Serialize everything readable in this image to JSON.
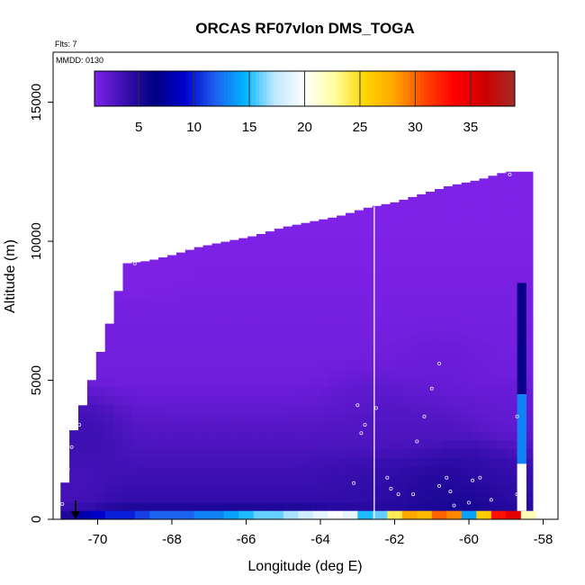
{
  "chart_data": {
    "type": "heatmap",
    "title": "ORCAS RF07vlon DMS_TOGA",
    "subtitle": "Flts: 7",
    "date_label": "MMDD: 0130",
    "xlabel": "Longitude (deg E)",
    "ylabel": "Altitude (m)",
    "xlim": [
      -71.2,
      -57.6
    ],
    "ylim": [
      0,
      16800
    ],
    "x_ticks": [
      -70,
      -68,
      -66,
      -64,
      -62,
      -60,
      -58
    ],
    "y_ticks": [
      0,
      5000,
      10000,
      15000
    ],
    "colorbar": {
      "range": [
        1,
        39
      ],
      "ticks": [
        5,
        10,
        15,
        20,
        25,
        30,
        35
      ],
      "colors": [
        "#7f22e8",
        "#3a0fb0",
        "#000080",
        "#0000cd",
        "#1e5ef0",
        "#00b4ff",
        "#bfe8ff",
        "#ffffff",
        "#ffffa0",
        "#ffd700",
        "#ffa500",
        "#ff4500",
        "#ff0000",
        "#cd0000",
        "#a52a2a"
      ]
    },
    "flight_line_longitude": -62.55,
    "ceiling": [
      {
        "lon": -71.0,
        "alt": 300
      },
      {
        "lon": -70.8,
        "alt": 2000
      },
      {
        "lon": -70.6,
        "alt": 3500
      },
      {
        "lon": -70.3,
        "alt": 4400
      },
      {
        "lon": -70.0,
        "alt": 5700
      },
      {
        "lon": -69.75,
        "alt": 6700
      },
      {
        "lon": -69.5,
        "alt": 7900
      },
      {
        "lon": -69.25,
        "alt": 9200
      },
      {
        "lon": -68.6,
        "alt": 9300
      },
      {
        "lon": -68.0,
        "alt": 9500
      },
      {
        "lon": -67.25,
        "alt": 9800
      },
      {
        "lon": -66.5,
        "alt": 10000
      },
      {
        "lon": -65.75,
        "alt": 10200
      },
      {
        "lon": -65.0,
        "alt": 10500
      },
      {
        "lon": -64.25,
        "alt": 10700
      },
      {
        "lon": -63.5,
        "alt": 10900
      },
      {
        "lon": -62.75,
        "alt": 11200
      },
      {
        "lon": -62.0,
        "alt": 11400
      },
      {
        "lon": -61.25,
        "alt": 11700
      },
      {
        "lon": -60.5,
        "alt": 12000
      },
      {
        "lon": -59.75,
        "alt": 12200
      },
      {
        "lon": -59.0,
        "alt": 12500
      },
      {
        "lon": -58.7,
        "alt": 12500
      }
    ],
    "samples": [
      {
        "lon": -70.95,
        "alt": 550,
        "value": 3
      },
      {
        "lon": -70.8,
        "alt": 1800,
        "value": 3
      },
      {
        "lon": -70.7,
        "alt": 2600,
        "value": 4
      },
      {
        "lon": -70.5,
        "alt": 3400,
        "value": 4
      },
      {
        "lon": -69.0,
        "alt": 9200,
        "value": 1
      },
      {
        "lon": -63.0,
        "alt": 4100,
        "value": 2
      },
      {
        "lon": -62.8,
        "alt": 3400,
        "value": 3
      },
      {
        "lon": -62.9,
        "alt": 3100,
        "value": 3
      },
      {
        "lon": -62.5,
        "alt": 4000,
        "value": 3
      },
      {
        "lon": -63.1,
        "alt": 1300,
        "value": 4
      },
      {
        "lon": -62.2,
        "alt": 1500,
        "value": 4
      },
      {
        "lon": -62.1,
        "alt": 1100,
        "value": 4
      },
      {
        "lon": -61.9,
        "alt": 900,
        "value": 5
      },
      {
        "lon": -61.5,
        "alt": 900,
        "value": 5
      },
      {
        "lon": -61.4,
        "alt": 2800,
        "value": 3
      },
      {
        "lon": -61.2,
        "alt": 3700,
        "value": 3
      },
      {
        "lon": -61.0,
        "alt": 4700,
        "value": 2
      },
      {
        "lon": -60.8,
        "alt": 5600,
        "value": 2
      },
      {
        "lon": -60.8,
        "alt": 1200,
        "value": 5
      },
      {
        "lon": -60.6,
        "alt": 1500,
        "value": 5
      },
      {
        "lon": -60.5,
        "alt": 1000,
        "value": 5
      },
      {
        "lon": -60.4,
        "alt": 500,
        "value": 6
      },
      {
        "lon": -60.0,
        "alt": 600,
        "value": 6
      },
      {
        "lon": -59.9,
        "alt": 1400,
        "value": 4
      },
      {
        "lon": -59.7,
        "alt": 1500,
        "value": 4
      },
      {
        "lon": -59.4,
        "alt": 700,
        "value": 5
      },
      {
        "lon": -58.9,
        "alt": 12400,
        "value": 1
      },
      {
        "lon": -58.7,
        "alt": 3700,
        "value": 2
      },
      {
        "lon": -58.7,
        "alt": 900,
        "value": 4
      }
    ],
    "surface_layer": [
      {
        "lon": -71.0,
        "value": 5
      },
      {
        "lon": -70.6,
        "value": 8
      },
      {
        "lon": -70.2,
        "value": 9
      },
      {
        "lon": -69.8,
        "value": 10
      },
      {
        "lon": -69.4,
        "value": 10
      },
      {
        "lon": -69.0,
        "value": 11
      },
      {
        "lon": -68.6,
        "value": 12
      },
      {
        "lon": -68.2,
        "value": 12
      },
      {
        "lon": -67.8,
        "value": 12
      },
      {
        "lon": -67.4,
        "value": 13
      },
      {
        "lon": -67.0,
        "value": 13
      },
      {
        "lon": -66.6,
        "value": 14
      },
      {
        "lon": -66.2,
        "value": 15
      },
      {
        "lon": -65.8,
        "value": 16
      },
      {
        "lon": -65.4,
        "value": 16
      },
      {
        "lon": -65.0,
        "value": 17
      },
      {
        "lon": -64.6,
        "value": 18
      },
      {
        "lon": -64.2,
        "value": 19
      },
      {
        "lon": -63.8,
        "value": 20
      },
      {
        "lon": -63.4,
        "value": 19
      },
      {
        "lon": -63.0,
        "value": 15
      },
      {
        "lon": -62.6,
        "value": 16
      },
      {
        "lon": -62.2,
        "value": 24
      },
      {
        "lon": -61.8,
        "value": 28
      },
      {
        "lon": -61.4,
        "value": 27
      },
      {
        "lon": -61.0,
        "value": 30
      },
      {
        "lon": -60.6,
        "value": 29
      },
      {
        "lon": -60.2,
        "value": 14
      },
      {
        "lon": -59.8,
        "value": 26
      },
      {
        "lon": -59.4,
        "value": 33
      },
      {
        "lon": -59.0,
        "value": 35
      },
      {
        "lon": -58.6,
        "value": 22
      }
    ]
  }
}
